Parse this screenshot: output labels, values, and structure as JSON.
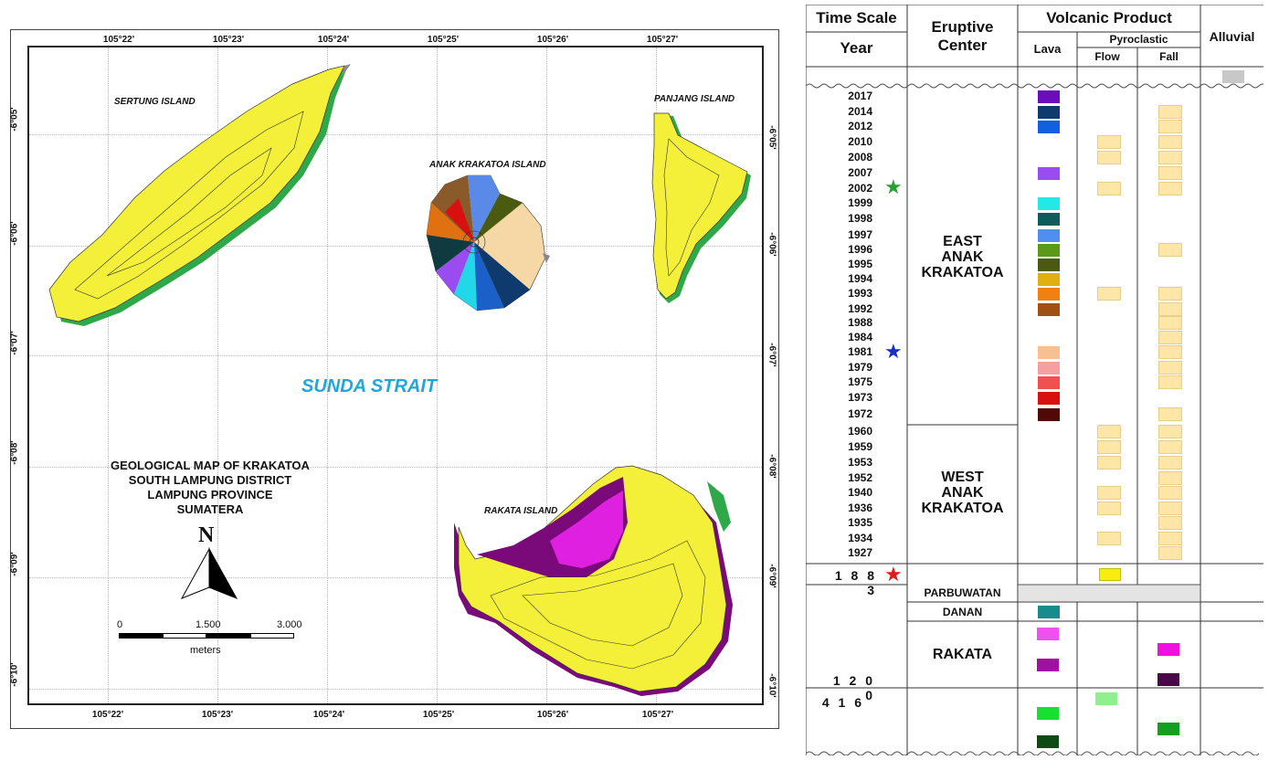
{
  "map": {
    "title_lines": [
      "GEOLOGICAL MAP OF KRAKATOA",
      "SOUTH LAMPUNG DISTRICT",
      "LAMPUNG PROVINCE",
      "SUMATERA"
    ],
    "strait": "SUNDA STRAIT",
    "islands": {
      "sertung": "SERTUNG ISLAND",
      "anak": "ANAK KRAKATOA ISLAND",
      "panjang": "PANJANG ISLAND",
      "rakata": "RAKATA ISLAND"
    },
    "longitudes": [
      "105°22'",
      "105°23'",
      "105°24'",
      "105°25'",
      "105°26'",
      "105°27'"
    ],
    "latitudes": [
      "-6°05'",
      "-6°06'",
      "-6°07'",
      "-6°08'",
      "-6°09'",
      "-6°10'"
    ],
    "latitudes_right": [
      "-6°05'",
      "-6°06'",
      "-6°07'",
      "-6°08'",
      "-6°09'",
      "-6°10'"
    ],
    "north": "N",
    "scale": {
      "ticks": [
        "0",
        "1.500",
        "3.000"
      ],
      "unit": "meters"
    },
    "colors": {
      "island_fill": "#f4f03a",
      "rakata_purple": "#7a0a7a",
      "rakata_magenta": "#e020e0",
      "coast_green": "#2fa84a",
      "water": "#ffffff"
    }
  },
  "strat": {
    "headers": {
      "time_scale": "Time Scale",
      "year": "Year",
      "eruptive_center": "Eruptive Center",
      "volcanic_product": "Volcanic Product",
      "lava": "Lava",
      "pyroclastic": "Pyroclastic",
      "flow": "Flow",
      "fall": "Fall",
      "alluvial": "Alluvial"
    },
    "centers": {
      "east": [
        "EAST",
        "ANAK",
        "KRAKATOA"
      ],
      "west": [
        "WEST",
        "ANAK",
        "KRAKATOA"
      ],
      "parbuwatan": "PARBUWATAN",
      "danan": "DANAN",
      "rakata": "RAKATA"
    },
    "east_years": [
      "2017",
      "2014",
      "2012",
      "2010",
      "2008",
      "2007",
      "2002",
      "1999",
      "1998",
      "1997",
      "1996",
      "1995",
      "1994",
      "1993",
      "1992",
      "1988",
      "1984",
      "1981",
      "1979",
      "1975",
      "1973",
      "1972"
    ],
    "west_years": [
      "1960",
      "1959",
      "1953",
      "1952",
      "1940",
      "1936",
      "1935",
      "1934",
      "1927"
    ],
    "year_1883": "1 8 8 3",
    "year_1200": "1 2 0 0",
    "year_416": "4 1 6",
    "star_colors": {
      "green": "#2aa032",
      "blue": "#1b2dc6",
      "red": "#e01b1b"
    },
    "lava_colors_east": [
      "#6a0dbd",
      "#0e3a6e",
      "#1060e0",
      "",
      "",
      "#9a4cf0",
      "",
      "#22e8e8",
      "#0f5a5a",
      "#4f8ff0",
      "#5a9a18",
      "#4a5a10",
      "#e0b010",
      "#f08010",
      "#a05010",
      "",
      "",
      "#f8c090",
      "#f4a0a0",
      "#f05050",
      "#d81010",
      "#500808"
    ],
    "alluvial_color": "#c8c8c8",
    "yellow_1883": "#f7ee10",
    "danan_color": "#178c8c",
    "rakata_lava": [
      "#f050f0",
      "#a010a0"
    ],
    "rakata_fall": [
      "#f010e0",
      "#4a0848"
    ],
    "l416_lava": [
      "#18e030",
      "#0e4a14"
    ],
    "l416_flow": "#90f090",
    "l416_fall": "#13a020"
  }
}
